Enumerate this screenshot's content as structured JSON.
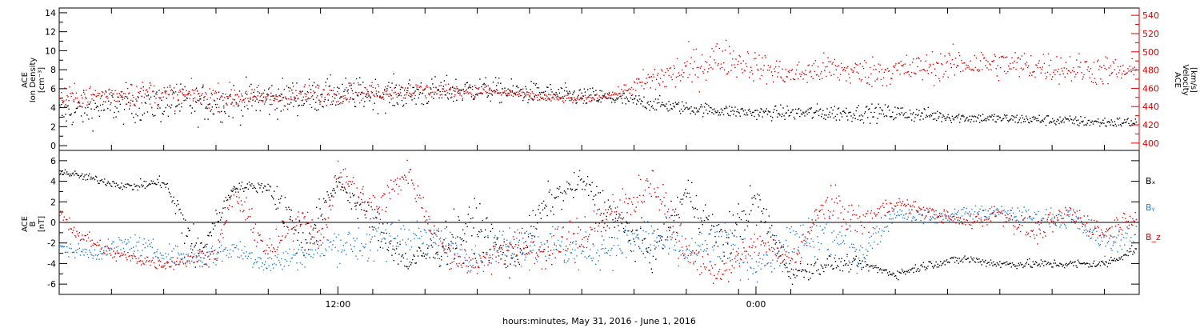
{
  "chart_data": [
    {
      "type": "scatter",
      "panel": "ion-density-velocity",
      "ylabel_left": [
        "ACE",
        "Ion Density",
        "[cm⁻³]"
      ],
      "ylabel_right": [
        "ACE",
        "Velocity",
        "[km/s]"
      ],
      "ylim_left": [
        -0.5,
        14.5
      ],
      "ylim_right": [
        392,
        548
      ],
      "yticks_left": [
        0,
        2,
        4,
        6,
        8,
        10,
        12,
        14
      ],
      "yticks_right": [
        400,
        420,
        440,
        460,
        480,
        500,
        520,
        540
      ],
      "right_axis_color": "#e00000",
      "series": [
        {
          "axis": "left",
          "color": "#000000",
          "anchors_hours": [
            0,
            2,
            4,
            6,
            8,
            10,
            12,
            14,
            16,
            18,
            20,
            22,
            24,
            26,
            28,
            30,
            30.9
          ],
          "anchors_values": [
            3.5,
            4.5,
            4.5,
            5,
            5.5,
            5.5,
            6,
            5.5,
            5,
            4,
            3.5,
            3.5,
            3.5,
            3,
            2.8,
            2.5,
            2.5
          ],
          "spread": [
            1.5,
            1.8,
            1.8,
            1.8,
            1.5,
            1.5,
            1.2,
            1,
            0.8,
            0.6,
            0.6,
            0.8,
            0.8,
            0.5,
            0.5,
            0.5,
            0.5
          ]
        },
        {
          "axis": "right",
          "color": "#e00000",
          "anchors_hours": [
            0,
            2,
            4,
            6,
            8,
            10,
            12,
            13,
            14,
            15,
            16,
            17,
            18,
            19,
            20,
            21,
            22,
            23,
            24,
            26,
            28,
            30,
            30.9
          ],
          "anchors_values": [
            450,
            455,
            452,
            450,
            455,
            458,
            458,
            455,
            450,
            448,
            455,
            470,
            480,
            495,
            485,
            475,
            482,
            478,
            480,
            488,
            485,
            480,
            478
          ],
          "spread": [
            10,
            12,
            12,
            12,
            10,
            8,
            6,
            5,
            4,
            4,
            4,
            15,
            20,
            18,
            15,
            12,
            15,
            15,
            15,
            15,
            15,
            15,
            12
          ]
        }
      ]
    },
    {
      "type": "scatter",
      "panel": "magnetic-field",
      "ylabel_left": [
        "ACE",
        "B",
        "[nT]"
      ],
      "ylim": [
        -7,
        7
      ],
      "yticks": [
        -6,
        -4,
        -2,
        0,
        2,
        4,
        6
      ],
      "zero_line": true,
      "legend": [
        {
          "label": "Bₓ",
          "color": "#000000"
        },
        {
          "label": "Bᵧ",
          "color": "#1e7fd6"
        },
        {
          "label": "B_z",
          "color": "#e00000"
        }
      ],
      "series": [
        {
          "name": "Bx",
          "color": "#000000",
          "anchors_hours": [
            0,
            2,
            3,
            3.4,
            4,
            5,
            6,
            6.5,
            7,
            8,
            9,
            10,
            11,
            12,
            13,
            14,
            15,
            16,
            17,
            18,
            19,
            20,
            21,
            22,
            23,
            24,
            25,
            26,
            27,
            28,
            29,
            30,
            30.9
          ],
          "anchors_values": [
            5,
            3.5,
            4,
            1,
            -3,
            3.5,
            3.5,
            1,
            -2,
            4,
            0,
            -4,
            -2,
            0,
            -4,
            2,
            4,
            0,
            -3,
            3,
            -2,
            2,
            -5,
            -4,
            -4,
            -5,
            -4,
            -3.5,
            -4,
            -4,
            -4,
            -4,
            -2.5
          ],
          "spread": [
            0.3,
            0.4,
            0.5,
            2,
            1.5,
            0.4,
            0.5,
            2,
            2,
            0.5,
            2,
            1,
            2,
            2,
            1.5,
            1.5,
            1,
            2,
            1.5,
            1.5,
            2,
            2,
            0.8,
            0.8,
            0.5,
            0.4,
            0.4,
            0.4,
            0.4,
            0.4,
            0.4,
            0.4,
            0.5
          ]
        },
        {
          "name": "By",
          "color": "#1e7fd6",
          "anchors_hours": [
            0,
            1,
            2,
            3,
            4,
            5,
            6,
            7,
            8,
            9,
            10,
            11,
            12,
            13,
            14,
            15,
            16,
            17,
            18,
            19,
            20,
            21,
            22,
            23,
            24,
            25,
            26,
            27,
            28,
            29,
            30,
            30.9
          ],
          "anchors_values": [
            -2.5,
            -3,
            -2,
            -3,
            -3.5,
            -2.5,
            -4,
            -3,
            -2,
            -2,
            -1,
            -2,
            -3,
            -2,
            -2,
            -3,
            -2,
            -1.5,
            -3,
            -2,
            -4,
            -2,
            -1,
            -3,
            1,
            0.5,
            1,
            1,
            0.5,
            0.5,
            -2,
            -1
          ],
          "spread": [
            0.6,
            0.6,
            1,
            0.8,
            1,
            1,
            1,
            1.2,
            1.5,
            2,
            2,
            1.5,
            1.5,
            2,
            2,
            1.5,
            2,
            2,
            1.5,
            2,
            1.5,
            2,
            2,
            1.5,
            0.6,
            0.6,
            0.6,
            0.6,
            0.8,
            1,
            1,
            1
          ]
        },
        {
          "name": "Bz",
          "color": "#e00000",
          "anchors_hours": [
            0,
            0.5,
            1.5,
            3,
            4.5,
            5,
            6,
            7,
            7.5,
            8,
            9,
            10,
            11,
            12,
            13,
            14,
            15,
            16,
            17,
            18,
            19,
            20,
            21,
            22,
            23,
            24,
            25,
            26,
            27,
            28,
            29,
            30,
            30.9
          ],
          "anchors_values": [
            1,
            -1,
            -3,
            -4,
            -3,
            3,
            -3,
            1,
            -2,
            5,
            1,
            5,
            -3,
            -4,
            -2,
            -3,
            -1,
            1,
            4,
            -3,
            -5,
            -2,
            -4,
            2,
            0,
            2,
            1,
            0,
            1,
            -1,
            1,
            -1,
            1
          ],
          "spread": [
            0.5,
            0.8,
            0.6,
            0.6,
            0.8,
            1,
            1.2,
            1,
            1.2,
            1,
            2,
            1,
            1.5,
            1.2,
            1.5,
            1.5,
            2,
            2,
            1.5,
            1.5,
            1,
            1.5,
            1.2,
            1.5,
            1.5,
            0.6,
            0.5,
            0.6,
            1,
            1,
            1,
            1,
            1
          ]
        }
      ]
    }
  ],
  "x_axis": {
    "xlim_hours": [
      0,
      31
    ],
    "data_end_hours": 30.9,
    "ticks": [
      {
        "hours": 8,
        "label": "12:00"
      },
      {
        "hours": 20,
        "label": "0:00"
      }
    ],
    "label": "hours:minutes, May 31, 2016 - June  1, 2016"
  },
  "colors": {
    "black": "#000000",
    "red": "#e00000",
    "blue": "#1e7fd6"
  }
}
